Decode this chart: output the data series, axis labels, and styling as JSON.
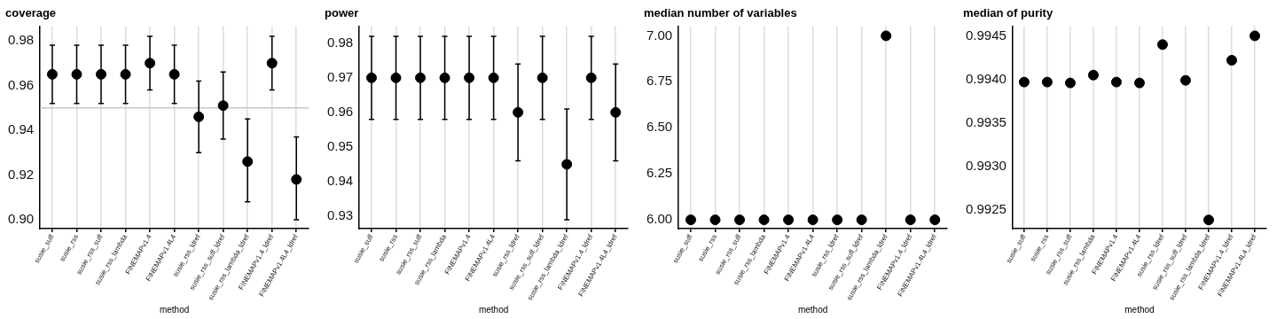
{
  "chart_data": [
    {
      "type": "scatter",
      "title": "coverage",
      "xlabel": "method",
      "categories": [
        "susie_suff",
        "susie_rss",
        "susie_rss_suff",
        "susie_rss_lambda",
        "FINEMAPv1.4",
        "FINEMAPv1.4L4",
        "susie_rss_ldref",
        "susie_rss_suff_ldref",
        "susie_rss_lambda_ldref",
        "FINEMAPv1.4_ldref",
        "FINEMAPv1.4L4_ldref"
      ],
      "series": [
        {
          "color": "#000000",
          "values": [
            0.965,
            0.965,
            0.965,
            0.965,
            0.97,
            0.965,
            0.946,
            0.951,
            0.926,
            0.97,
            0.918
          ],
          "errors": [
            [
              0.952,
              0.978
            ],
            [
              0.952,
              0.978
            ],
            [
              0.952,
              0.978
            ],
            [
              0.952,
              0.978
            ],
            [
              0.958,
              0.982
            ],
            [
              0.952,
              0.978
            ],
            [
              0.93,
              0.962
            ],
            [
              0.936,
              0.966
            ],
            [
              0.908,
              0.945
            ],
            [
              0.958,
              0.982
            ],
            [
              0.9,
              0.937
            ]
          ]
        }
      ],
      "ylim": [
        0.896,
        0.9865
      ],
      "yticks": [
        {
          "value": 0.9,
          "label": "0.90"
        },
        0.92,
        0.94,
        0.96,
        0.98
      ],
      "grid": "x",
      "marker": "circle",
      "legend": false,
      "ref_lines": [
        {
          "axis": "y",
          "value": 0.95,
          "color": "#c8c8c8"
        }
      ]
    },
    {
      "type": "scatter",
      "title": "power",
      "xlabel": "method",
      "categories": [
        "susie_suff",
        "susie_rss",
        "susie_rss_suff",
        "susie_rss_lambda",
        "FINEMAPv1.4",
        "FINEMAPv1.4L4",
        "susie_rss_ldref",
        "susie_rss_suff_ldref",
        "susie_rss_lambda_ldref",
        "FINEMAPv1.4_ldref",
        "FINEMAPv1.4L4_ldref"
      ],
      "series": [
        {
          "color": "#000000",
          "values": [
            0.97,
            0.97,
            0.97,
            0.97,
            0.97,
            0.97,
            0.96,
            0.97,
            0.945,
            0.97,
            0.96
          ],
          "errors": [
            [
              0.958,
              0.982
            ],
            [
              0.958,
              0.982
            ],
            [
              0.958,
              0.982
            ],
            [
              0.958,
              0.982
            ],
            [
              0.958,
              0.982
            ],
            [
              0.958,
              0.982
            ],
            [
              0.946,
              0.974
            ],
            [
              0.958,
              0.982
            ],
            [
              0.929,
              0.961
            ],
            [
              0.958,
              0.982
            ],
            [
              0.946,
              0.974
            ]
          ]
        }
      ],
      "ylim": [
        0.9264,
        0.9849
      ],
      "yticks": [
        0.93,
        0.94,
        0.95,
        0.96,
        0.97,
        0.98
      ],
      "grid": "x",
      "marker": "circle",
      "legend": false
    },
    {
      "type": "scatter",
      "title": "median number of variables",
      "xlabel": "method",
      "categories": [
        "susie_suff",
        "susie_rss",
        "susie_rss_suff",
        "susie_rss_lambda",
        "FINEMAPv1.4",
        "FINEMAPv1.4L4",
        "susie_rss_ldref",
        "susie_rss_suff_ldref",
        "susie_rss_lambda_ldref",
        "FINEMAPv1.4_ldref",
        "FINEMAPv1.4L4_ldref"
      ],
      "series": [
        {
          "color": "#000000",
          "values": [
            6,
            6,
            6,
            6,
            6,
            6,
            6,
            6,
            7,
            6,
            6
          ]
        }
      ],
      "ylim": [
        5.952,
        7.052
      ],
      "yticks": [
        {
          "value": 6,
          "label": "6.00"
        },
        {
          "value": 6.25,
          "label": "6.25"
        },
        {
          "value": 6.5,
          "label": "6.50"
        },
        {
          "value": 6.75,
          "label": "6.75"
        },
        {
          "value": 7,
          "label": "7.00"
        }
      ],
      "grid": "x",
      "marker": "circle",
      "legend": false
    },
    {
      "type": "scatter",
      "title": "median of purity",
      "xlabel": "method",
      "categories": [
        "susie_suff",
        "susie_rss",
        "susie_rss_suff",
        "susie_rss_lambda",
        "FINEMAPv1.4",
        "FINEMAPv1.4L4",
        "susie_rss_ldref",
        "susie_rss_suff_ldref",
        "susie_rss_lambda_ldref",
        "FINEMAPv1.4_ldref",
        "FINEMAPv1.4L4_ldref"
      ],
      "series": [
        {
          "color": "#000000",
          "values": [
            0.99397,
            0.99397,
            0.99396,
            0.99405,
            0.99397,
            0.99396,
            0.9944,
            0.99399,
            0.99239,
            0.99422,
            0.9945
          ]
        }
      ],
      "ylim": [
        0.99229,
        0.99461
      ],
      "yticks": [
        {
          "value": 0.9925,
          "label": "0.9925"
        },
        {
          "value": 0.993,
          "label": "0.9930"
        },
        {
          "value": 0.9935,
          "label": "0.9935"
        },
        {
          "value": 0.994,
          "label": "0.9940"
        },
        {
          "value": 0.9945,
          "label": "0.9945"
        }
      ],
      "grid": "x",
      "marker": "circle",
      "legend": false
    }
  ]
}
